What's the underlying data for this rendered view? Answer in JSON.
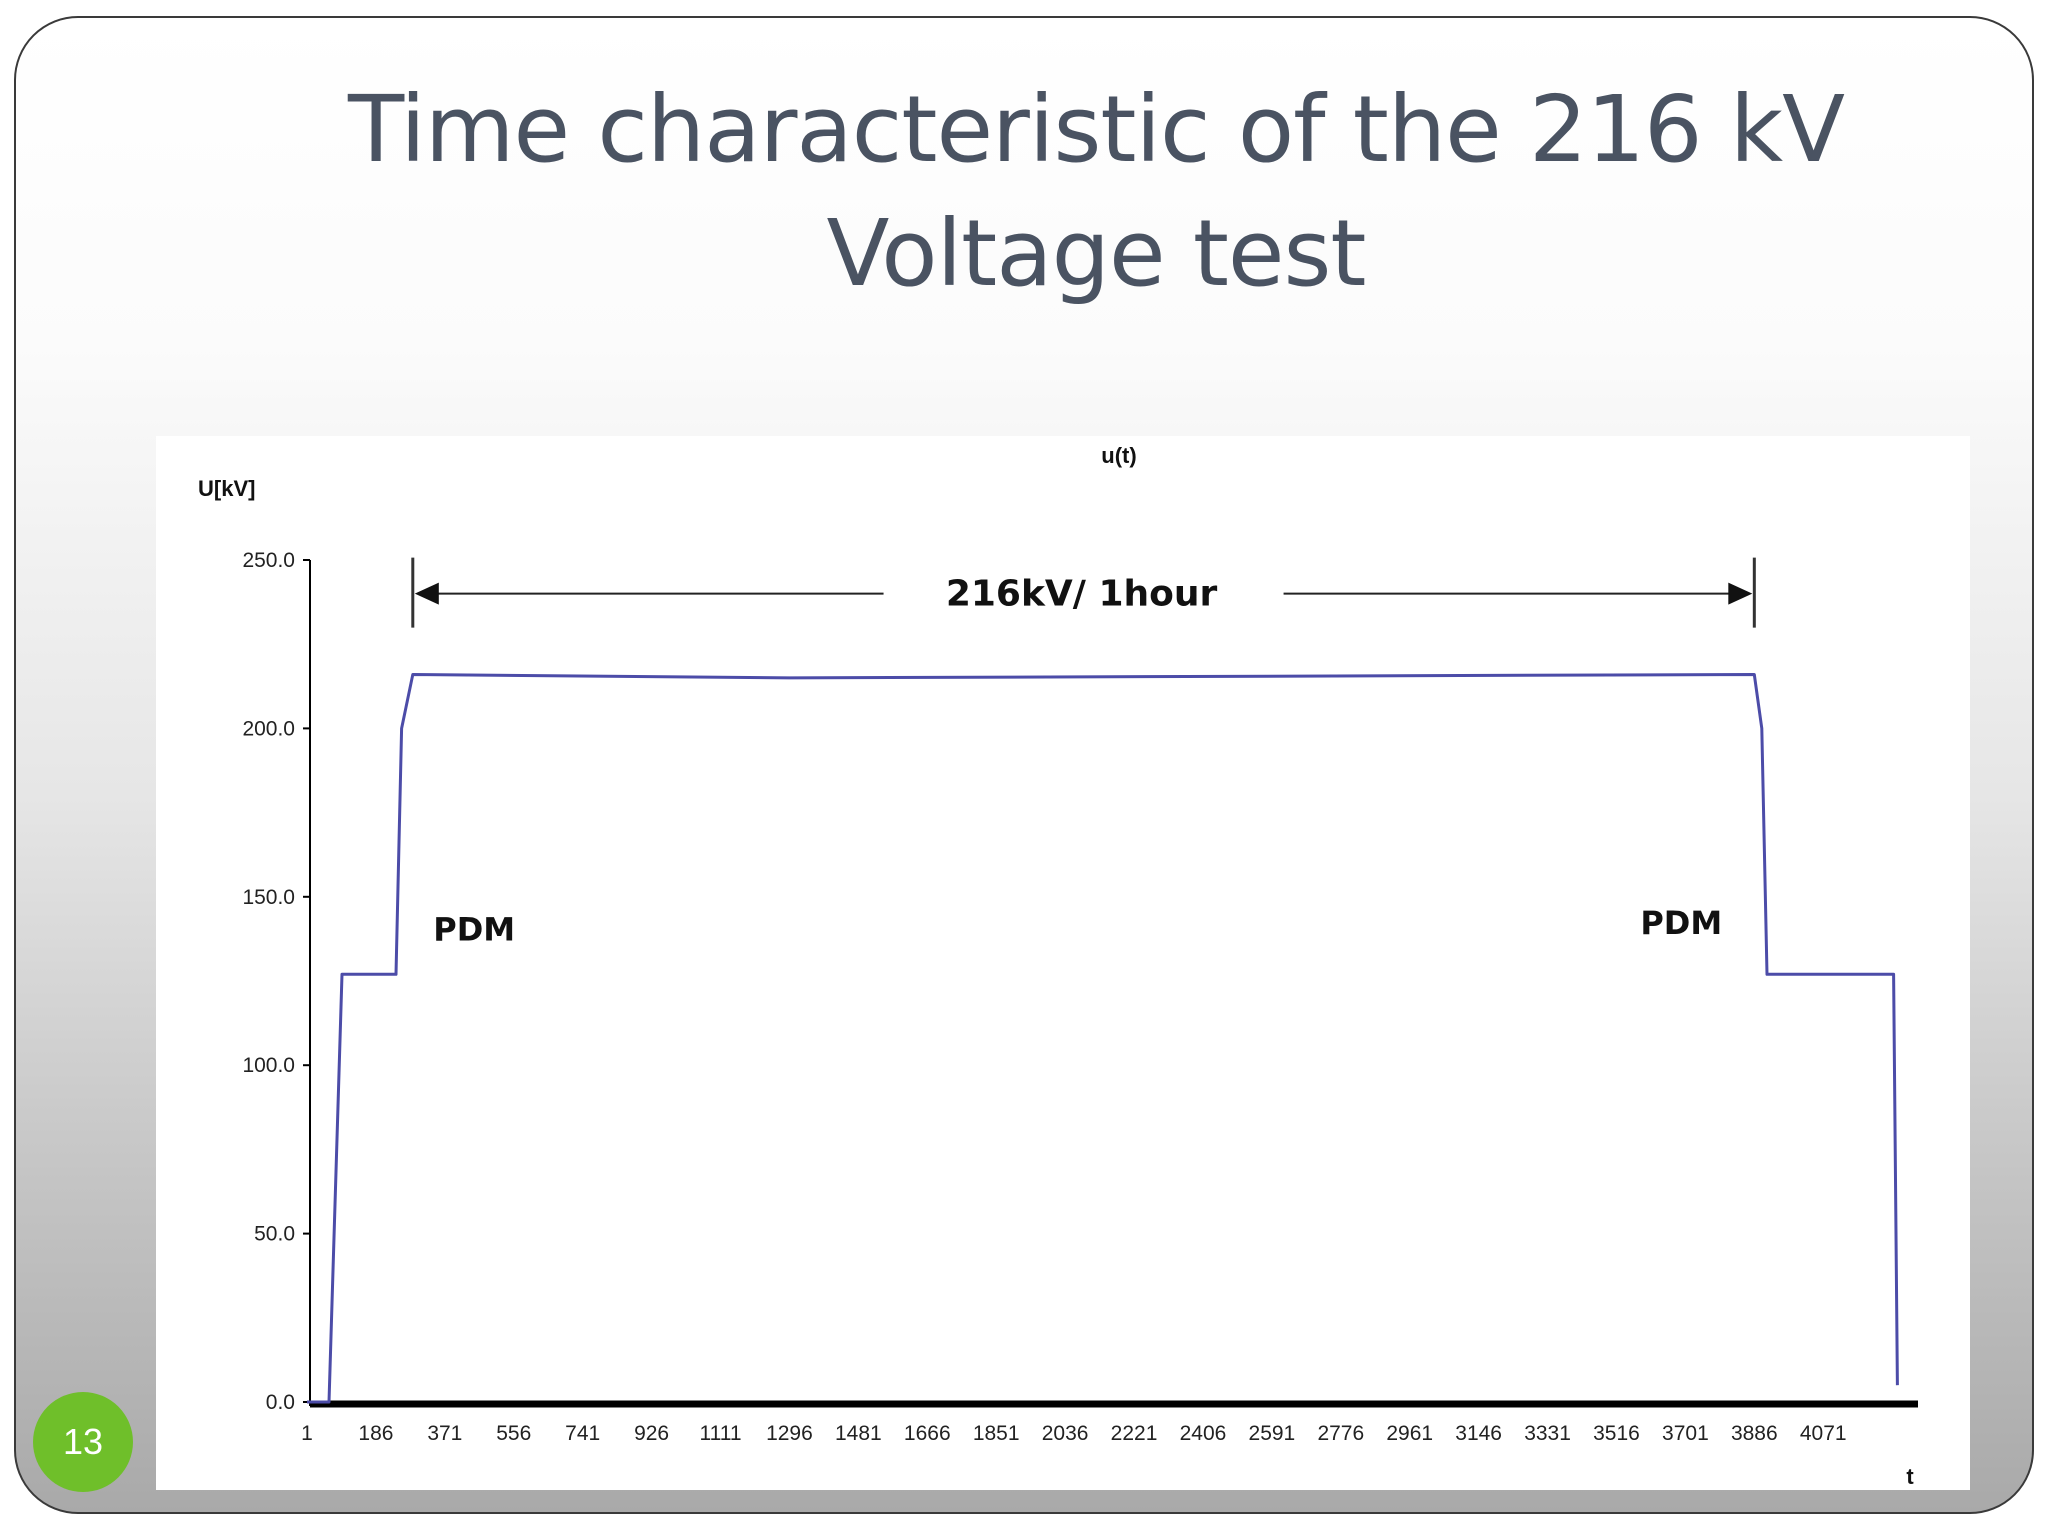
{
  "slide": {
    "title": "Time characteristic of the 216 kV Voltage test",
    "page_number": "13"
  },
  "colors": {
    "title": "#4a5362",
    "series": "#4c4ca8",
    "axis": "#000000",
    "badge": "#6fbf2a"
  },
  "chart_data": {
    "type": "line",
    "title": "u(t)",
    "ylabel": "U[kV]",
    "xlabel": "t",
    "ylim": [
      0,
      250
    ],
    "yticks": [
      "0.0",
      "50.0",
      "100.0",
      "150.0",
      "200.0",
      "250.0"
    ],
    "xlim": [
      1,
      4320
    ],
    "xticks": [
      "1",
      "186",
      "371",
      "556",
      "741",
      "926",
      "1111",
      "1296",
      "1481",
      "1666",
      "1851",
      "2036",
      "2221",
      "2406",
      "2591",
      "2776",
      "2961",
      "3146",
      "3331",
      "3516",
      "3701",
      "3886",
      "4071"
    ],
    "grid": false,
    "legend": "none",
    "series": [
      {
        "x": [
          1,
          60,
          95,
          240,
          255,
          285,
          1296,
          3886,
          3906,
          3920,
          4260,
          4270
        ],
        "y": [
          0,
          0,
          127,
          127,
          200,
          216,
          215,
          216,
          200,
          127,
          127,
          5
        ]
      }
    ],
    "annotations": [
      {
        "text": "216kV/ 1hour",
        "type": "double-arrow",
        "x_start": 285,
        "x_end": 3886,
        "y": 240
      },
      {
        "text": "PDM",
        "x": 340,
        "y": 137
      },
      {
        "text": "PDM",
        "x": 3580,
        "y": 139
      }
    ]
  }
}
